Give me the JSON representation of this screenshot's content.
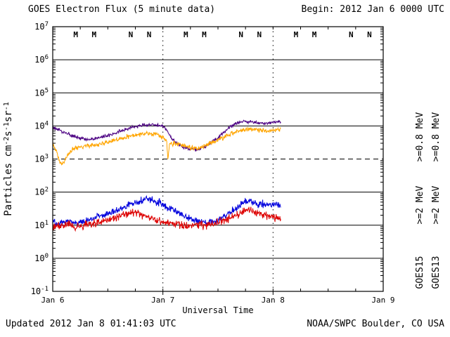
{
  "header": {
    "title": "GOES Electron Flux (5 minute data)",
    "begin_label": "Begin: 2012 Jan 6 0000 UTC"
  },
  "footer": {
    "updated": "Updated 2012 Jan 8 01:41:03 UTC",
    "credit": "NOAA/SWPC Boulder, CO USA"
  },
  "y_axis": {
    "label_parts": [
      [
        "Particles cm",
        "n"
      ],
      [
        "-2",
        "s"
      ],
      [
        "s",
        "n"
      ],
      [
        "-1",
        "s"
      ],
      [
        "sr",
        "n"
      ],
      [
        "-1",
        "s"
      ]
    ],
    "label_text": "Particles cm-2s-1sr-1",
    "exponents": [
      7,
      6,
      5,
      4,
      3,
      2,
      1,
      0,
      -1
    ]
  },
  "x_axis": {
    "label": "Universal Time",
    "ticks": [
      "Jan 6",
      "Jan 7",
      "Jan 8",
      "Jan 9"
    ]
  },
  "right_labels": [
    {
      "text": ">=0.8 MeV",
      "color": "#4b0082",
      "col": 0,
      "row": 0
    },
    {
      "text": ">=0.8 MeV",
      "color": "#ffa500",
      "col": 1,
      "row": 0
    },
    {
      "text": ">=2 MeV",
      "color": "#0000dd",
      "col": 0,
      "row": 1
    },
    {
      "text": ">=2 MeV",
      "color": "#dd0000",
      "col": 1,
      "row": 1
    },
    {
      "text": "GOES15",
      "color": "#000000",
      "col": 0,
      "row": 2
    },
    {
      "text": "GOES13",
      "color": "#000000",
      "col": 1,
      "row": 2
    }
  ],
  "chart_data": {
    "type": "line",
    "title": "GOES Electron Flux (5 minute data)",
    "xlabel": "Universal Time",
    "ylabel": "Particles cm-2s-1sr-1 (log scale)",
    "x_range": [
      "2012 Jan 6 0000 UTC",
      "2012 Jan 9 0000 UTC"
    ],
    "y_range": [
      0.1,
      10000000
    ],
    "y_scale": "log",
    "grid": "solid line each decade, dashed threshold at 1e3, dotted day boundaries",
    "legend_position": "right margin, rotated",
    "threshold_dashed_at": 1000,
    "day_boundaries_hours": [
      24,
      48
    ],
    "markers": [
      {
        "letter": "M",
        "color": "#dd0000",
        "hour": 5
      },
      {
        "letter": "M",
        "color": "#0000dd",
        "hour": 9
      },
      {
        "letter": "N",
        "color": "#dd0000",
        "hour": 17
      },
      {
        "letter": "N",
        "color": "#0000dd",
        "hour": 21
      },
      {
        "letter": "M",
        "color": "#dd0000",
        "hour": 29
      },
      {
        "letter": "M",
        "color": "#0000dd",
        "hour": 33
      },
      {
        "letter": "N",
        "color": "#dd0000",
        "hour": 41
      },
      {
        "letter": "N",
        "color": "#0000dd",
        "hour": 45
      },
      {
        "letter": "M",
        "color": "#dd0000",
        "hour": 53
      },
      {
        "letter": "M",
        "color": "#0000dd",
        "hour": 57
      },
      {
        "letter": "N",
        "color": "#dd0000",
        "hour": 65
      },
      {
        "letter": "N",
        "color": "#0000dd",
        "hour": 69
      }
    ],
    "series": [
      {
        "name": "GOES15 >=0.8 MeV",
        "satellite": "GOES15",
        "channel": ">=0.8 MeV",
        "color": "#4b0082",
        "noise_decades": 0.025,
        "points_hours_flux": [
          [
            0,
            9000
          ],
          [
            1,
            8000
          ],
          [
            2,
            7000
          ],
          [
            3,
            6000
          ],
          [
            4,
            5200
          ],
          [
            5,
            4600
          ],
          [
            6,
            4200
          ],
          [
            7,
            4000
          ],
          [
            8,
            3900
          ],
          [
            9,
            4000
          ],
          [
            10,
            4300
          ],
          [
            11,
            4700
          ],
          [
            12,
            5200
          ],
          [
            13,
            5800
          ],
          [
            14,
            6500
          ],
          [
            15,
            7200
          ],
          [
            16,
            8000
          ],
          [
            17,
            8800
          ],
          [
            18,
            9500
          ],
          [
            19,
            10200
          ],
          [
            20,
            10800
          ],
          [
            21,
            11000
          ],
          [
            22,
            10800
          ],
          [
            23,
            10400
          ],
          [
            24,
            10000
          ],
          [
            25,
            7000
          ],
          [
            26,
            4000
          ],
          [
            27,
            3000
          ],
          [
            28,
            2500
          ],
          [
            29,
            2200
          ],
          [
            30,
            2000
          ],
          [
            31,
            1900
          ],
          [
            32,
            2000
          ],
          [
            33,
            2300
          ],
          [
            34,
            2800
          ],
          [
            35,
            3500
          ],
          [
            36,
            4500
          ],
          [
            37,
            6000
          ],
          [
            38,
            8000
          ],
          [
            39,
            10000
          ],
          [
            40,
            12000
          ],
          [
            41,
            13000
          ],
          [
            42,
            14000
          ],
          [
            43,
            13500
          ],
          [
            44,
            13000
          ],
          [
            45,
            12500
          ],
          [
            46,
            12000
          ],
          [
            47,
            12500
          ],
          [
            48,
            13000
          ],
          [
            49,
            13500
          ],
          [
            49.7,
            14000
          ]
        ]
      },
      {
        "name": "GOES13 >=0.8 MeV",
        "satellite": "GOES13",
        "channel": ">=0.8 MeV",
        "color": "#ffa500",
        "noise_decades": 0.035,
        "points_hours_flux": [
          [
            0,
            3000
          ],
          [
            1,
            1500
          ],
          [
            1.5,
            800
          ],
          [
            2,
            700
          ],
          [
            2.5,
            800
          ],
          [
            3,
            1200
          ],
          [
            4,
            1800
          ],
          [
            5,
            2200
          ],
          [
            6,
            2400
          ],
          [
            7,
            2500
          ],
          [
            8,
            2500
          ],
          [
            9,
            2600
          ],
          [
            10,
            2800
          ],
          [
            11,
            3000
          ],
          [
            12,
            3200
          ],
          [
            13,
            3500
          ],
          [
            14,
            3800
          ],
          [
            15,
            4200
          ],
          [
            16,
            4600
          ],
          [
            17,
            5000
          ],
          [
            18,
            5300
          ],
          [
            19,
            5600
          ],
          [
            20,
            5800
          ],
          [
            21,
            6000
          ],
          [
            22,
            5800
          ],
          [
            23,
            5500
          ],
          [
            24,
            4500
          ],
          [
            24.8,
            3500
          ],
          [
            25.1,
            900
          ],
          [
            25.4,
            3000
          ],
          [
            26,
            2900
          ],
          [
            27,
            2800
          ],
          [
            28,
            2600
          ],
          [
            29,
            2400
          ],
          [
            30,
            2200
          ],
          [
            31,
            2100
          ],
          [
            32,
            2200
          ],
          [
            33,
            2400
          ],
          [
            34,
            2800
          ],
          [
            35,
            3200
          ],
          [
            36,
            3800
          ],
          [
            37,
            4500
          ],
          [
            38,
            5200
          ],
          [
            39,
            6000
          ],
          [
            40,
            6800
          ],
          [
            41,
            7500
          ],
          [
            42,
            8000
          ],
          [
            43,
            8200
          ],
          [
            44,
            8000
          ],
          [
            45,
            7500
          ],
          [
            46,
            7000
          ],
          [
            47,
            7200
          ],
          [
            48,
            7500
          ],
          [
            49,
            7800
          ],
          [
            49.7,
            8000
          ]
        ]
      },
      {
        "name": "GOES15 >=2 MeV",
        "satellite": "GOES15",
        "channel": ">=2 MeV",
        "color": "#0000dd",
        "noise_decades": 0.05,
        "points_hours_flux": [
          [
            0,
            13
          ],
          [
            1,
            11
          ],
          [
            2,
            12
          ],
          [
            3,
            14
          ],
          [
            4,
            13
          ],
          [
            5,
            11
          ],
          [
            6,
            12
          ],
          [
            7,
            14
          ],
          [
            8,
            15
          ],
          [
            9,
            16
          ],
          [
            10,
            18
          ],
          [
            11,
            20
          ],
          [
            12,
            22
          ],
          [
            13,
            25
          ],
          [
            14,
            28
          ],
          [
            15,
            32
          ],
          [
            16,
            37
          ],
          [
            17,
            42
          ],
          [
            18,
            48
          ],
          [
            19,
            53
          ],
          [
            20,
            58
          ],
          [
            21,
            62
          ],
          [
            22,
            55
          ],
          [
            23,
            48
          ],
          [
            24,
            42
          ],
          [
            25,
            35
          ],
          [
            26,
            30
          ],
          [
            27,
            25
          ],
          [
            28,
            21
          ],
          [
            29,
            18
          ],
          [
            30,
            16
          ],
          [
            31,
            14
          ],
          [
            32,
            13
          ],
          [
            33,
            12
          ],
          [
            34,
            12.5
          ],
          [
            35,
            13
          ],
          [
            36,
            14
          ],
          [
            37,
            17
          ],
          [
            38,
            21
          ],
          [
            39,
            27
          ],
          [
            40,
            34
          ],
          [
            41,
            42
          ],
          [
            42,
            50
          ],
          [
            43,
            55
          ],
          [
            44,
            45
          ],
          [
            45,
            42
          ],
          [
            46,
            44
          ],
          [
            47,
            40
          ],
          [
            48,
            42
          ],
          [
            49,
            41
          ],
          [
            49.7,
            40
          ]
        ]
      },
      {
        "name": "GOES13 >=2 MeV",
        "satellite": "GOES13",
        "channel": ">=2 MeV",
        "color": "#dd0000",
        "noise_decades": 0.06,
        "points_hours_flux": [
          [
            0,
            10
          ],
          [
            1,
            9
          ],
          [
            2,
            10
          ],
          [
            3,
            11
          ],
          [
            4,
            10
          ],
          [
            5,
            9
          ],
          [
            6,
            9.5
          ],
          [
            7,
            10
          ],
          [
            8,
            10.5
          ],
          [
            9,
            11
          ],
          [
            10,
            12
          ],
          [
            11,
            13
          ],
          [
            12,
            14.5
          ],
          [
            13,
            16
          ],
          [
            14,
            18
          ],
          [
            15,
            20
          ],
          [
            16,
            22
          ],
          [
            17,
            24
          ],
          [
            17.5,
            25
          ],
          [
            18,
            24
          ],
          [
            19,
            22
          ],
          [
            20,
            19
          ],
          [
            21,
            17
          ],
          [
            22,
            15
          ],
          [
            23,
            13.5
          ],
          [
            24,
            12.5
          ],
          [
            25,
            12
          ],
          [
            26,
            11
          ],
          [
            27,
            10.5
          ],
          [
            28,
            10
          ],
          [
            29,
            9.5
          ],
          [
            30,
            9.5
          ],
          [
            31,
            9.5
          ],
          [
            32,
            10
          ],
          [
            33,
            10
          ],
          [
            34,
            10.5
          ],
          [
            35,
            11
          ],
          [
            36,
            12
          ],
          [
            37,
            13.5
          ],
          [
            38,
            15.5
          ],
          [
            39,
            18
          ],
          [
            40,
            21
          ],
          [
            41,
            25
          ],
          [
            42,
            28
          ],
          [
            42.5,
            30
          ],
          [
            43,
            28
          ],
          [
            44,
            25
          ],
          [
            45,
            22
          ],
          [
            46,
            20
          ],
          [
            47,
            18
          ],
          [
            48,
            17
          ],
          [
            49,
            16
          ],
          [
            49.7,
            16
          ]
        ]
      }
    ]
  }
}
